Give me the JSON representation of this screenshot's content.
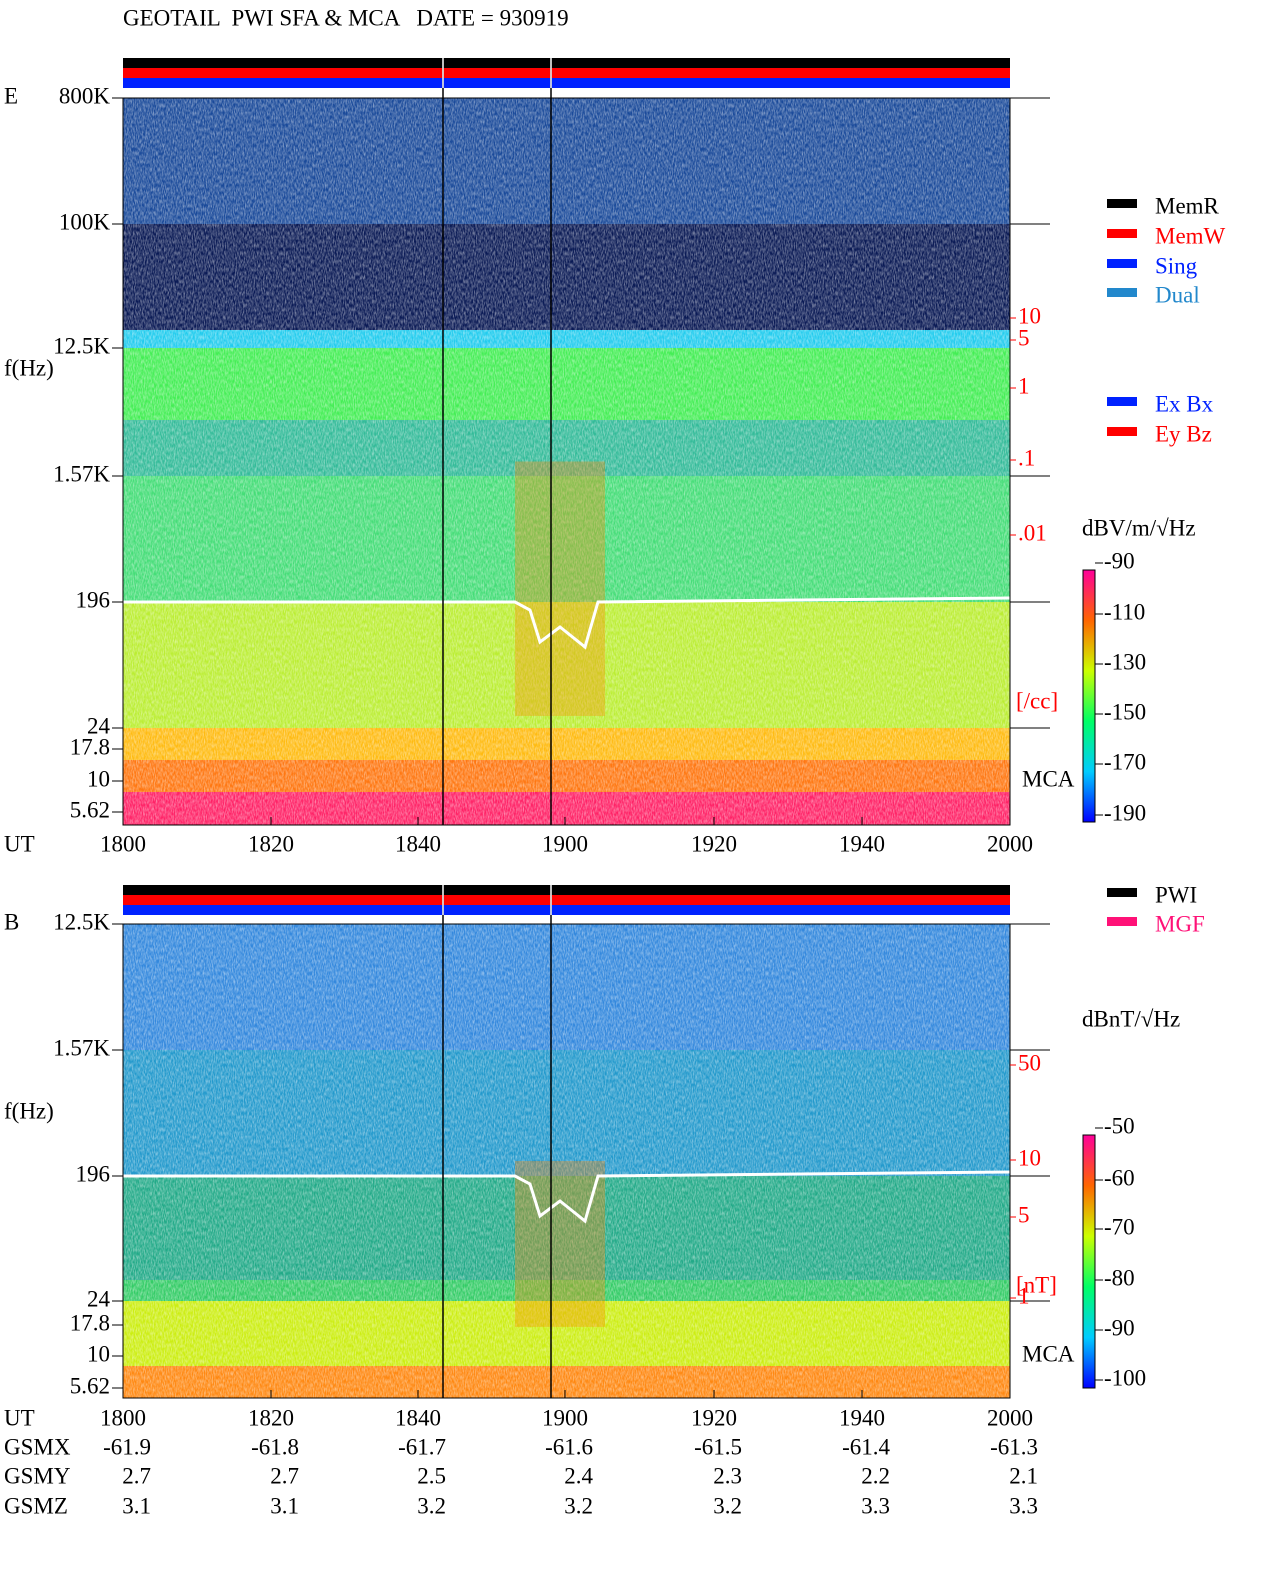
{
  "header": {
    "title": "GEOTAIL  PWI SFA & MCA   DATE = 930919"
  },
  "panels": [
    {
      "component": "E",
      "y_axis_label": "f(Hz)",
      "freq_ticks": [
        "800K",
        "100K",
        "12.5K",
        "1.57K",
        "196",
        "24",
        "17.8",
        "10",
        "5.62"
      ],
      "density_ticks": [
        "10",
        "5",
        "1",
        ".1",
        ".01"
      ],
      "density_unit": "[/cc]",
      "mca_label": "MCA",
      "time_label": "UT",
      "time_ticks": [
        "1800",
        "1820",
        "1840",
        "1900",
        "1920",
        "1940",
        "2000"
      ],
      "colorbar_unit": "dBV/m/√Hz",
      "colorbar_ticks": [
        "-90",
        "-110",
        "-130",
        "-150",
        "-170",
        "-190"
      ],
      "legends": [
        {
          "label": "MemR",
          "color": "#000000"
        },
        {
          "label": "MemW",
          "color": "#ff0000"
        },
        {
          "label": "Sing",
          "color": "#0022ff"
        },
        {
          "label": "Dual",
          "color": "#2288cc"
        }
      ],
      "channel_legends": [
        {
          "label": "Ex Bx",
          "color": "#0022ff"
        },
        {
          "label": "Ey Bz",
          "color": "#ff0000"
        }
      ]
    },
    {
      "component": "B",
      "y_axis_label": "f(Hz)",
      "freq_ticks": [
        "12.5K",
        "1.57K",
        "196",
        "24",
        "17.8",
        "10",
        "5.62"
      ],
      "density_ticks": [
        "50",
        "10",
        "5",
        "1"
      ],
      "density_unit": "[nT]",
      "mca_label": "MCA",
      "time_label": "UT",
      "time_ticks": [
        "1800",
        "1820",
        "1840",
        "1900",
        "1920",
        "1940",
        "2000"
      ],
      "colorbar_unit": "dBnT/√Hz",
      "colorbar_ticks": [
        "-50",
        "-60",
        "-70",
        "-80",
        "-90",
        "-100"
      ],
      "legends": [
        {
          "label": "PWI",
          "color": "#000000"
        },
        {
          "label": "MGF",
          "color": "#ff1177"
        }
      ]
    }
  ],
  "orbit": {
    "rows": [
      {
        "label": "GSMX",
        "values": [
          "-61.9",
          "-61.8",
          "-61.7",
          "-61.6",
          "-61.5",
          "-61.4",
          "-61.3"
        ]
      },
      {
        "label": "GSMY",
        "values": [
          "2.7",
          "2.7",
          "2.5",
          "2.4",
          "2.3",
          "2.2",
          "2.1"
        ]
      },
      {
        "label": "GSMZ",
        "values": [
          "3.1",
          "3.1",
          "3.2",
          "3.2",
          "3.2",
          "3.3",
          "3.3"
        ]
      }
    ]
  }
}
